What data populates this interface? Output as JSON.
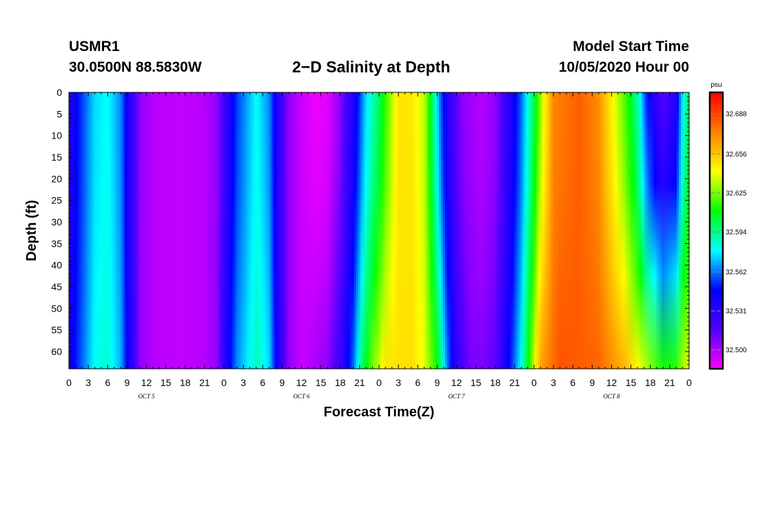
{
  "header": {
    "station_name": "USMR1",
    "station_coords": "30.0500N 88.5830W",
    "title": "2−D Salinity at Depth",
    "start_time_label": "Model Start Time",
    "start_time_value": "10/05/2020 Hour 00"
  },
  "chart_data": {
    "type": "heatmap",
    "title": "2−D Salinity at Depth",
    "xlabel": "Forecast Time(Z)",
    "ylabel": "Depth (ft)",
    "x_ticks": [
      "0",
      "3",
      "6",
      "9",
      "12",
      "15",
      "18",
      "21",
      "0",
      "3",
      "6",
      "9",
      "12",
      "15",
      "18",
      "21",
      "0",
      "3",
      "6",
      "9",
      "12",
      "15",
      "18",
      "21",
      "0",
      "3",
      "6",
      "9",
      "12",
      "15",
      "18",
      "21",
      "0"
    ],
    "x_range_hours": [
      0,
      96
    ],
    "day_labels": [
      {
        "text": "OCT 5",
        "hour": 12
      },
      {
        "text": "OCT 6",
        "hour": 36
      },
      {
        "text": "OCT 7",
        "hour": 60
      },
      {
        "text": "OCT 8",
        "hour": 84
      }
    ],
    "y_ticks": [
      0,
      5,
      10,
      15,
      20,
      25,
      30,
      35,
      40,
      45,
      50,
      55,
      60
    ],
    "y_range": [
      0,
      64
    ],
    "y_inverted": true,
    "colorbar": {
      "unit": "psu",
      "ticks": [
        32.688,
        32.656,
        32.625,
        32.594,
        32.562,
        32.531,
        32.5
      ],
      "range": [
        32.485,
        32.705
      ],
      "colors": [
        "#ff00ff",
        "#5000ff",
        "#0000ff",
        "#00ffff",
        "#00ff00",
        "#ffff00",
        "#ff7f00",
        "#ff0000"
      ]
    },
    "surface_salinity_by_hour": [
      [
        0,
        32.535
      ],
      [
        2,
        32.555
      ],
      [
        4,
        32.575
      ],
      [
        6,
        32.58
      ],
      [
        8,
        32.565
      ],
      [
        9.5,
        32.53
      ],
      [
        11,
        32.505
      ],
      [
        13,
        32.498
      ],
      [
        17,
        32.496
      ],
      [
        21,
        32.498
      ],
      [
        23,
        32.505
      ],
      [
        24.5,
        32.53
      ],
      [
        26,
        32.555
      ],
      [
        29,
        32.58
      ],
      [
        31,
        32.565
      ],
      [
        32.5,
        32.53
      ],
      [
        34,
        32.505
      ],
      [
        36,
        32.495
      ],
      [
        38,
        32.488
      ],
      [
        40,
        32.49
      ],
      [
        42,
        32.505
      ],
      [
        44,
        32.535
      ],
      [
        46,
        32.575
      ],
      [
        48,
        32.6
      ],
      [
        49.5,
        32.625
      ],
      [
        51,
        32.648
      ],
      [
        53,
        32.648
      ],
      [
        55,
        32.635
      ],
      [
        56,
        32.605
      ],
      [
        57.5,
        32.56
      ],
      [
        59,
        32.525
      ],
      [
        61,
        32.505
      ],
      [
        64,
        32.498
      ],
      [
        66,
        32.505
      ],
      [
        68,
        32.53
      ],
      [
        70,
        32.56
      ],
      [
        72,
        32.6
      ],
      [
        73.5,
        32.64
      ],
      [
        75,
        32.672
      ],
      [
        79,
        32.682
      ],
      [
        82,
        32.67
      ],
      [
        84,
        32.645
      ],
      [
        86,
        32.62
      ],
      [
        88,
        32.59
      ],
      [
        89.5,
        32.55
      ],
      [
        92,
        32.515
      ],
      [
        94,
        32.535
      ],
      [
        95,
        32.58
      ],
      [
        96,
        32.6
      ]
    ],
    "deep_salinity_by_hour": [
      [
        0,
        32.54
      ],
      [
        2,
        32.56
      ],
      [
        4,
        32.58
      ],
      [
        6,
        32.585
      ],
      [
        8,
        32.57
      ],
      [
        9.5,
        32.535
      ],
      [
        11,
        32.505
      ],
      [
        13,
        32.498
      ],
      [
        17,
        32.496
      ],
      [
        21,
        32.498
      ],
      [
        23,
        32.505
      ],
      [
        24.5,
        32.54
      ],
      [
        26,
        32.565
      ],
      [
        29,
        32.588
      ],
      [
        31,
        32.575
      ],
      [
        32.5,
        32.535
      ],
      [
        34,
        32.505
      ],
      [
        36,
        32.495
      ],
      [
        38,
        32.5
      ],
      [
        40,
        32.505
      ],
      [
        42,
        32.525
      ],
      [
        44,
        32.56
      ],
      [
        45.5,
        32.6
      ],
      [
        47,
        32.625
      ],
      [
        49,
        32.648
      ],
      [
        53,
        32.65
      ],
      [
        55,
        32.64
      ],
      [
        57,
        32.61
      ],
      [
        58.5,
        32.565
      ],
      [
        60,
        32.53
      ],
      [
        62,
        32.51
      ],
      [
        64,
        32.508
      ],
      [
        66,
        32.515
      ],
      [
        68,
        32.545
      ],
      [
        70,
        32.58
      ],
      [
        71.5,
        32.62
      ],
      [
        73,
        32.665
      ],
      [
        76,
        32.685
      ],
      [
        82,
        32.68
      ],
      [
        86,
        32.66
      ],
      [
        89,
        32.635
      ],
      [
        92,
        32.612
      ],
      [
        94,
        32.615
      ],
      [
        95,
        32.632
      ],
      [
        96,
        32.64
      ]
    ]
  }
}
